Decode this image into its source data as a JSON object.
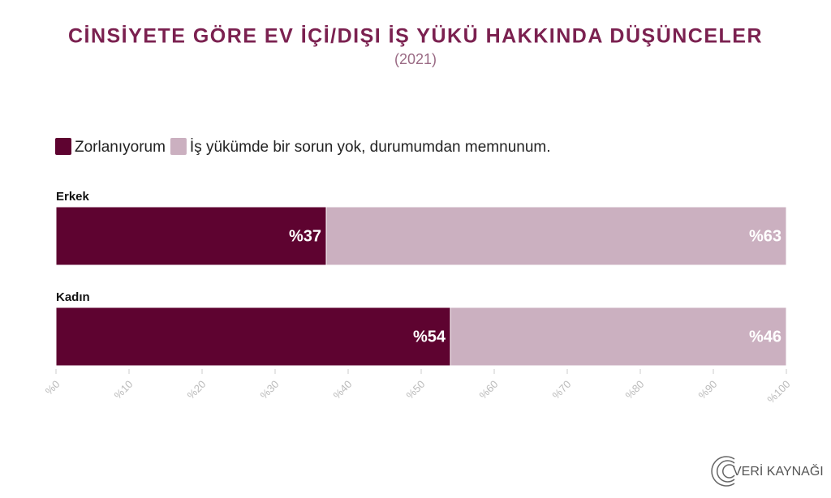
{
  "chart_data": {
    "type": "bar",
    "orientation": "horizontal",
    "stacked": true,
    "title": "CİNSİYETE GÖRE EV İÇİ/DIŞI İŞ YÜKÜ HAKKINDA DÜŞÜNCELER",
    "subtitle": "(2021)",
    "categories": [
      "Erkek",
      "Kadın"
    ],
    "series": [
      {
        "name": "Zorlanıyorum",
        "color": "#5e0330",
        "values": [
          37,
          54
        ],
        "value_labels": [
          "%37",
          "%54"
        ]
      },
      {
        "name": "İş yükümde bir sorun yok, durumumdan memnunum.",
        "color": "#cbb0c0",
        "values": [
          63,
          46
        ],
        "value_labels": [
          "%63",
          "%46"
        ]
      }
    ],
    "xlim": [
      0,
      100
    ],
    "xticks": [
      {
        "value": 0,
        "label": "%0"
      },
      {
        "value": 10,
        "label": "%10"
      },
      {
        "value": 20,
        "label": "%20"
      },
      {
        "value": 30,
        "label": "%30"
      },
      {
        "value": 40,
        "label": "%40"
      },
      {
        "value": 50,
        "label": "%50"
      },
      {
        "value": 60,
        "label": "%60"
      },
      {
        "value": 70,
        "label": "%70"
      },
      {
        "value": 80,
        "label": "%80"
      },
      {
        "value": 90,
        "label": "%90"
      },
      {
        "value": 100,
        "label": "%100"
      }
    ],
    "legend": "top-left",
    "source": "VERİ KAYNAĞI"
  }
}
